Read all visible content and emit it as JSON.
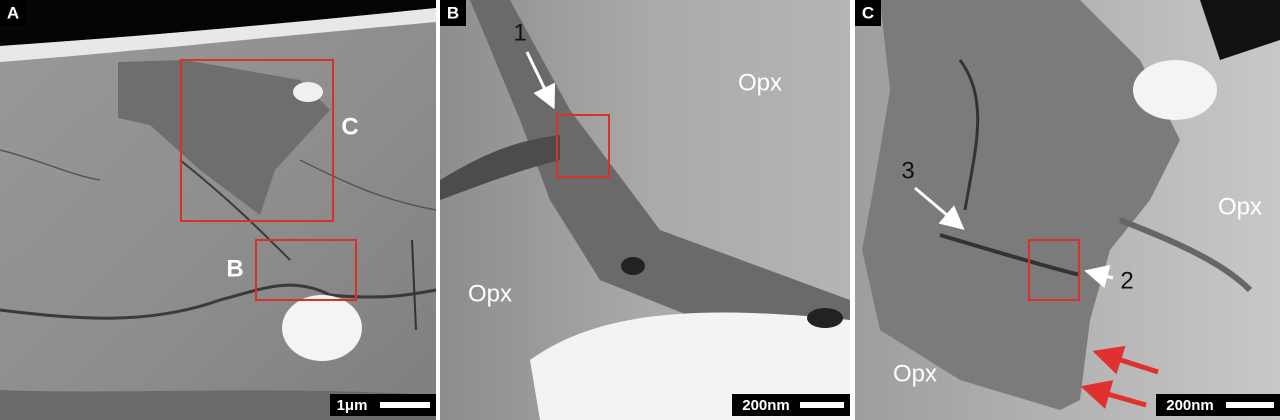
{
  "panels": [
    {
      "letter": "A",
      "labels": [
        "C",
        "B"
      ],
      "scale_bar": "1μm"
    },
    {
      "letter": "B",
      "labels": [
        "1",
        "Opx",
        "Opx"
      ],
      "scale_bar": "200nm"
    },
    {
      "letter": "C",
      "labels": [
        "3",
        "2",
        "Opx",
        "Opx"
      ],
      "scale_bar": "200nm"
    }
  ]
}
